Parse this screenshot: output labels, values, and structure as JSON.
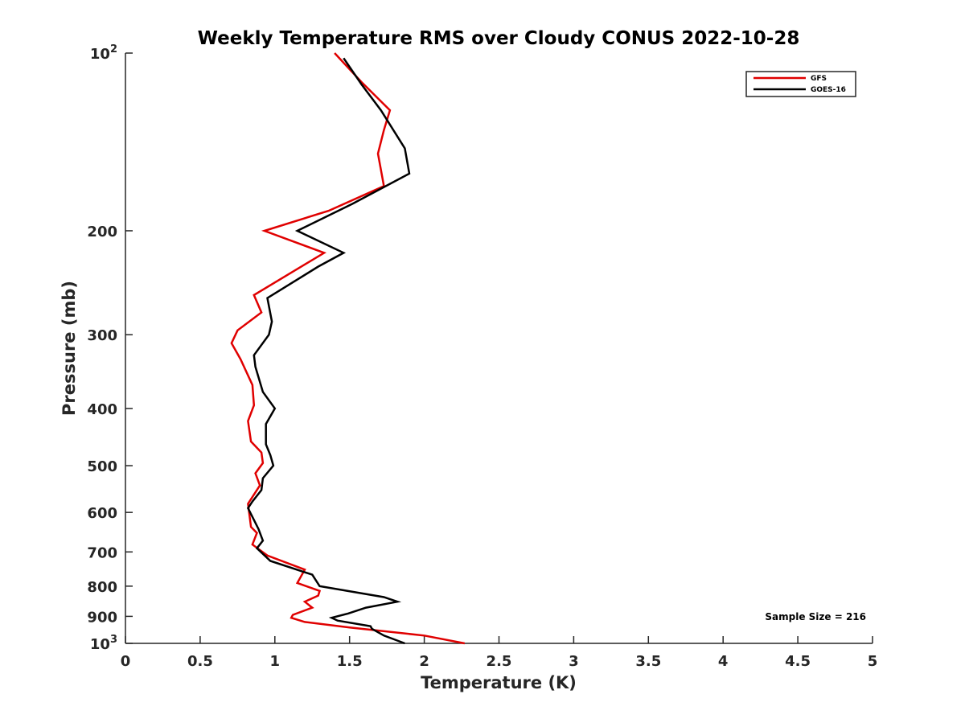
{
  "chart_data": {
    "type": "line",
    "title": "Weekly Temperature RMS over Cloudy CONUS 2022-10-28",
    "xlabel": "Temperature (K)",
    "ylabel": "Pressure (mb)",
    "xlim": [
      0,
      5
    ],
    "ylim": [
      100,
      1000
    ],
    "y_scale": "log",
    "y_reversed": true,
    "grid": false,
    "legend_placement": "top-right",
    "x_ticks": [
      0,
      0.5,
      1,
      1.5,
      2,
      2.5,
      3,
      3.5,
      4,
      4.5,
      5
    ],
    "x_tick_labels": [
      "0",
      "0.5",
      "1",
      "1.5",
      "2",
      "2.5",
      "3",
      "3.5",
      "4",
      "4.5",
      "5"
    ],
    "y_ticks": [
      100,
      200,
      300,
      400,
      500,
      600,
      700,
      800,
      900,
      1000
    ],
    "y_tick_labels": [
      {
        "base": "10",
        "exp": "2"
      },
      {
        "base": "200",
        "exp": ""
      },
      {
        "base": "300",
        "exp": ""
      },
      {
        "base": "400",
        "exp": ""
      },
      {
        "base": "500",
        "exp": ""
      },
      {
        "base": "600",
        "exp": ""
      },
      {
        "base": "700",
        "exp": ""
      },
      {
        "base": "800",
        "exp": ""
      },
      {
        "base": "900",
        "exp": ""
      },
      {
        "base": "10",
        "exp": "3"
      }
    ],
    "annotation": "Sample Size = 216",
    "series": [
      {
        "name": "GFS",
        "color": "#e00000",
        "points": [
          [
            1.4,
            100
          ],
          [
            1.58,
            112
          ],
          [
            1.77,
            125
          ],
          [
            1.73,
            135
          ],
          [
            1.69,
            148
          ],
          [
            1.73,
            168
          ],
          [
            1.36,
            185
          ],
          [
            0.93,
            200
          ],
          [
            1.33,
            218
          ],
          [
            0.86,
            257
          ],
          [
            0.91,
            275
          ],
          [
            0.75,
            295
          ],
          [
            0.71,
            310
          ],
          [
            0.77,
            330
          ],
          [
            0.85,
            365
          ],
          [
            0.86,
            395
          ],
          [
            0.82,
            420
          ],
          [
            0.84,
            455
          ],
          [
            0.91,
            475
          ],
          [
            0.92,
            495
          ],
          [
            0.87,
            515
          ],
          [
            0.9,
            540
          ],
          [
            0.82,
            580
          ],
          [
            0.84,
            635
          ],
          [
            0.88,
            650
          ],
          [
            0.85,
            680
          ],
          [
            0.95,
            710
          ],
          [
            1.2,
            750
          ],
          [
            1.15,
            790
          ],
          [
            1.3,
            815
          ],
          [
            1.29,
            830
          ],
          [
            1.2,
            850
          ],
          [
            1.25,
            870
          ],
          [
            1.12,
            895
          ],
          [
            1.11,
            905
          ],
          [
            1.2,
            920
          ],
          [
            1.5,
            940
          ],
          [
            2.0,
            970
          ],
          [
            2.27,
            1000
          ]
        ]
      },
      {
        "name": "GOES-16",
        "color": "#000000",
        "points": [
          [
            1.46,
            102
          ],
          [
            1.58,
            113
          ],
          [
            1.71,
            125
          ],
          [
            1.87,
            145
          ],
          [
            1.9,
            160
          ],
          [
            1.52,
            180
          ],
          [
            1.15,
            200
          ],
          [
            1.46,
            218
          ],
          [
            1.29,
            230
          ],
          [
            0.95,
            260
          ],
          [
            0.98,
            285
          ],
          [
            0.96,
            300
          ],
          [
            0.86,
            325
          ],
          [
            0.87,
            340
          ],
          [
            0.92,
            375
          ],
          [
            1.0,
            400
          ],
          [
            0.94,
            425
          ],
          [
            0.94,
            460
          ],
          [
            0.97,
            480
          ],
          [
            0.99,
            500
          ],
          [
            0.92,
            525
          ],
          [
            0.91,
            550
          ],
          [
            0.85,
            575
          ],
          [
            0.82,
            590
          ],
          [
            0.89,
            640
          ],
          [
            0.92,
            670
          ],
          [
            0.88,
            690
          ],
          [
            0.97,
            725
          ],
          [
            1.25,
            765
          ],
          [
            1.3,
            800
          ],
          [
            1.73,
            835
          ],
          [
            1.82,
            850
          ],
          [
            1.61,
            870
          ],
          [
            1.49,
            890
          ],
          [
            1.38,
            905
          ],
          [
            1.42,
            915
          ],
          [
            1.64,
            935
          ],
          [
            1.65,
            945
          ],
          [
            1.73,
            970
          ],
          [
            1.87,
            1000
          ]
        ]
      }
    ]
  }
}
